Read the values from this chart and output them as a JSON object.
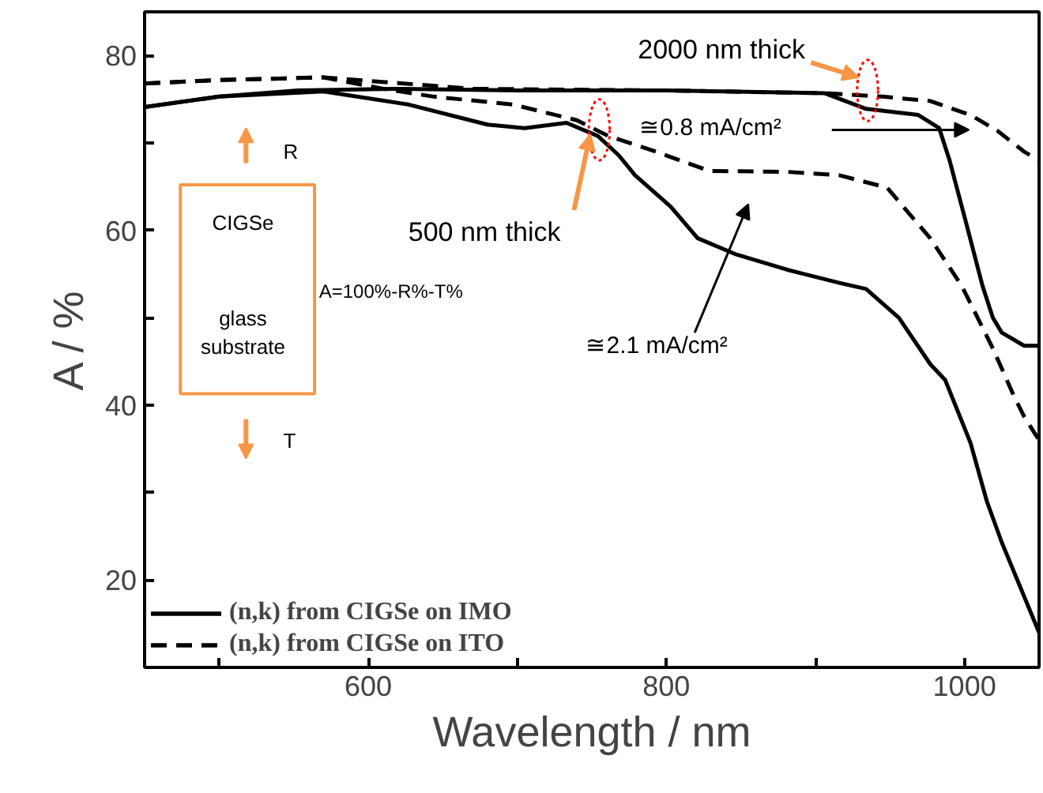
{
  "chart_data": {
    "type": "line",
    "xlabel": "Wavelength / nm",
    "ylabel": "A / %",
    "xlim": [
      450,
      1050
    ],
    "ylim": [
      10,
      85
    ],
    "xticks": [
      {
        "value": 500,
        "label": null
      },
      600,
      {
        "value": 700,
        "label": null
      },
      800,
      {
        "value": 900,
        "label": null
      },
      1000
    ],
    "yticks": [
      {
        "value": 30,
        "label": null
      },
      20,
      40,
      {
        "value": 50,
        "label": null
      },
      60,
      {
        "value": 70,
        "label": null
      },
      80
    ],
    "legend": "bottom left",
    "grid": false,
    "series": [
      {
        "name": "(n,k) from CIGSe on IMO",
        "color": "#000000",
        "line_style": "solid",
        "x": [
          450,
          500,
          553,
          617,
          700,
          800,
          906,
          934,
          969,
          983,
          990,
          1001,
          1012,
          1019,
          1025,
          1040,
          1050
        ],
        "values": [
          74.1,
          75.3,
          76,
          76.2,
          76,
          76,
          75.7,
          73.9,
          73.2,
          71.7,
          68,
          60.9,
          53.7,
          50,
          48.3,
          46.8,
          46.8
        ]
      },
      {
        "name": "(n,k) from CIGSe on ITO",
        "color": "#000000",
        "line_style": "dashed",
        "x": [
          450,
          500,
          570,
          670,
          800,
          906,
          945,
          977,
          1004,
          1022,
          1040,
          1050
        ],
        "values": [
          76.8,
          77.2,
          77.5,
          76.2,
          76,
          75.7,
          75.3,
          74.8,
          73.2,
          71.4,
          69,
          68
        ]
      },
      {
        "color": "#000000",
        "line_style": "solid",
        "x": [
          450,
          500,
          570,
          627,
          680,
          705,
          733,
          754,
          768,
          779,
          803,
          821,
          846,
          881,
          916,
          934,
          956,
          977,
          987,
          1004,
          1015,
          1025,
          1050
        ],
        "values": [
          74.1,
          75.3,
          75.9,
          74.4,
          72.1,
          71.7,
          72.3,
          70.8,
          68.6,
          66.3,
          62.7,
          59.1,
          57.3,
          55.5,
          54,
          53.3,
          50,
          44.7,
          42.9,
          35.7,
          29,
          24.3,
          14
        ]
      },
      {
        "color": "#000000",
        "line_style": "dashed",
        "x": [
          450,
          500,
          570,
          610,
          644,
          697,
          740,
          761,
          793,
          829,
          881,
          916,
          948,
          977,
          998,
          1019,
          1033,
          1040,
          1050
        ],
        "values": [
          76.8,
          77.2,
          77.5,
          76.2,
          75.3,
          74.4,
          72.6,
          70.8,
          69,
          66.8,
          66.7,
          66.3,
          64.9,
          59.1,
          53.7,
          46.5,
          41.1,
          38.7,
          36
        ]
      }
    ],
    "annotations": [
      {
        "text": "2000 nm thick",
        "x": 935,
        "y": 76
      },
      {
        "text": "500 nm thick",
        "x": 755,
        "y": 71.5
      },
      "≅0.8 mA/cm²",
      "≅2.1 mA/cm²",
      "R",
      "CIGSe",
      "glass substrate",
      "A=100%-R%-T%",
      "T"
    ]
  }
}
